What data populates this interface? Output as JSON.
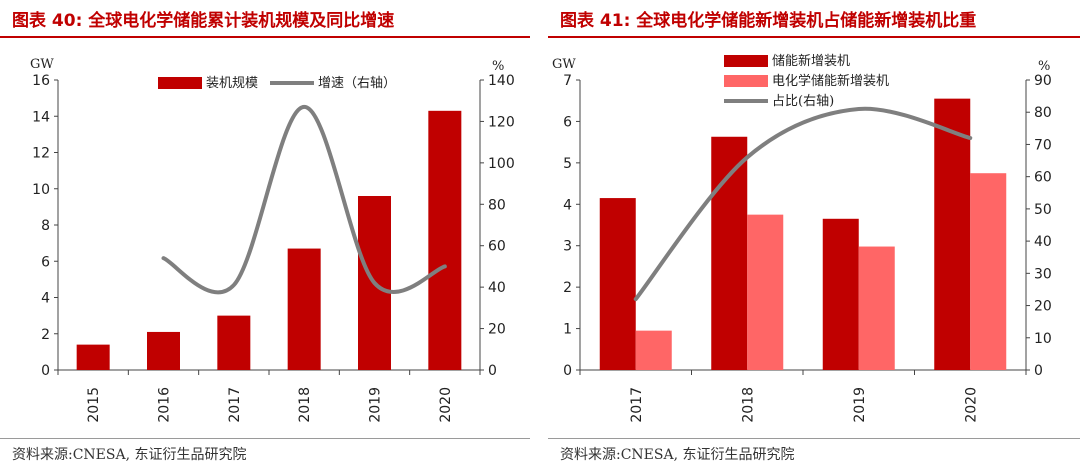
{
  "charts": [
    {
      "fig_title": "图表 40:  全球电化学储能累计装机规模及同比增速",
      "source": "资料来源:CNESA, 东证衍生品研究院",
      "left_unit": "GW",
      "right_unit": "%",
      "legend": [
        "装机规模",
        "增速（右轴）"
      ]
    },
    {
      "fig_title": "图表 41:  全球电化学储能新增装机占储能新增装机比重",
      "source": "资料来源:CNESA, 东证衍生品研究院",
      "left_unit": "GW",
      "right_unit": "%",
      "legend": [
        "储能新增装机",
        "电化学储能新增装机",
        "占比(右轴)"
      ]
    }
  ],
  "colors": {
    "title_red": "#c00000",
    "bar_dark": "#c00000",
    "bar_light": "#ff6666",
    "line_gray": "#7f7f7f"
  },
  "chart_data": [
    {
      "type": "bar",
      "categories": [
        "2015",
        "2016",
        "2017",
        "2018",
        "2019",
        "2020"
      ],
      "series": [
        {
          "name": "装机规模",
          "type": "bar",
          "axis": "left",
          "values": [
            1.4,
            2.1,
            3.0,
            6.7,
            9.6,
            14.3
          ]
        },
        {
          "name": "增速（右轴）",
          "type": "line",
          "axis": "right",
          "values": [
            null,
            54,
            41,
            127,
            42,
            50
          ]
        }
      ],
      "ylabel": "GW",
      "ylim": [
        0,
        16
      ],
      "yticks": [
        0,
        2,
        4,
        6,
        8,
        10,
        12,
        14,
        16
      ],
      "y2label": "%",
      "y2lim": [
        0,
        140
      ],
      "y2ticks": [
        0,
        20,
        40,
        60,
        80,
        100,
        120,
        140
      ],
      "legend_position": "top",
      "grid": false
    },
    {
      "type": "bar",
      "categories": [
        "2017",
        "2018",
        "2019",
        "2020"
      ],
      "series": [
        {
          "name": "储能新增装机",
          "type": "bar",
          "axis": "left",
          "values": [
            4.15,
            5.63,
            3.65,
            6.55
          ]
        },
        {
          "name": "电化学储能新增装机",
          "type": "bar",
          "axis": "left",
          "values": [
            0.95,
            3.75,
            2.98,
            4.75
          ]
        },
        {
          "name": "占比(右轴)",
          "type": "line",
          "axis": "right",
          "values": [
            22,
            66,
            81,
            72
          ]
        }
      ],
      "ylabel": "GW",
      "ylim": [
        0,
        7
      ],
      "yticks": [
        0,
        1,
        2,
        3,
        4,
        5,
        6,
        7
      ],
      "y2label": "%",
      "y2lim": [
        0,
        90
      ],
      "y2ticks": [
        0,
        10,
        20,
        30,
        40,
        50,
        60,
        70,
        80,
        90
      ],
      "legend_position": "top-left",
      "grid": false
    }
  ]
}
